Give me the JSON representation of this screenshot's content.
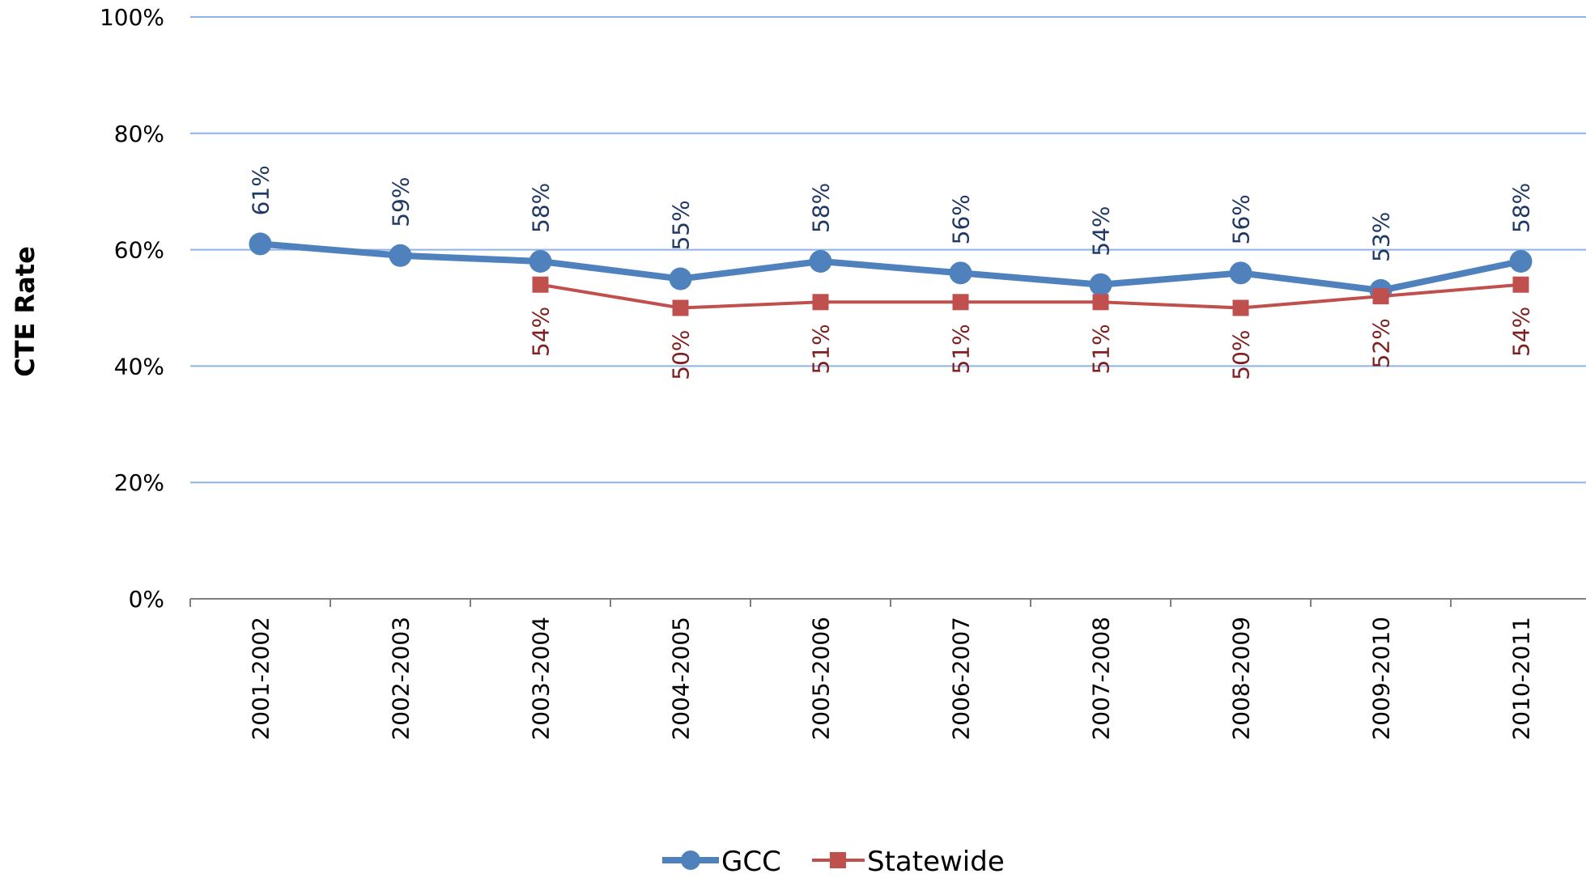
{
  "chart_data": {
    "type": "line",
    "title": "",
    "xlabel": "",
    "ylabel": "CTE Rate",
    "ylim": [
      0,
      100
    ],
    "y_ticks": [
      "0%",
      "20%",
      "40%",
      "60%",
      "80%",
      "100%"
    ],
    "y_tick_values": [
      0,
      20,
      40,
      60,
      80,
      100
    ],
    "grid": true,
    "legend": "bottom-center",
    "categories": [
      "2001-2002",
      "2002-2003",
      "2003-2004",
      "2004-2005",
      "2005-2006",
      "2006-2007",
      "2007-2008",
      "2008-2009",
      "2009-2010",
      "2010-2011"
    ],
    "series": [
      {
        "name": "GCC",
        "color": "#4F81BD",
        "label_color": "#1F3864",
        "marker": "circle",
        "values": [
          61,
          59,
          58,
          55,
          58,
          56,
          54,
          56,
          53,
          58
        ],
        "labels": [
          "61%",
          "59%",
          "58%",
          "55%",
          "58%",
          "56%",
          "54%",
          "56%",
          "53%",
          "58%"
        ]
      },
      {
        "name": "Statewide",
        "color": "#C0504D",
        "label_color": "#7F1F1F",
        "marker": "square",
        "values": [
          null,
          null,
          54,
          50,
          51,
          51,
          51,
          50,
          52,
          54
        ],
        "labels": [
          null,
          null,
          "54%",
          "50%",
          "51%",
          "51%",
          "51%",
          "50%",
          "52%",
          "54%"
        ]
      }
    ]
  }
}
